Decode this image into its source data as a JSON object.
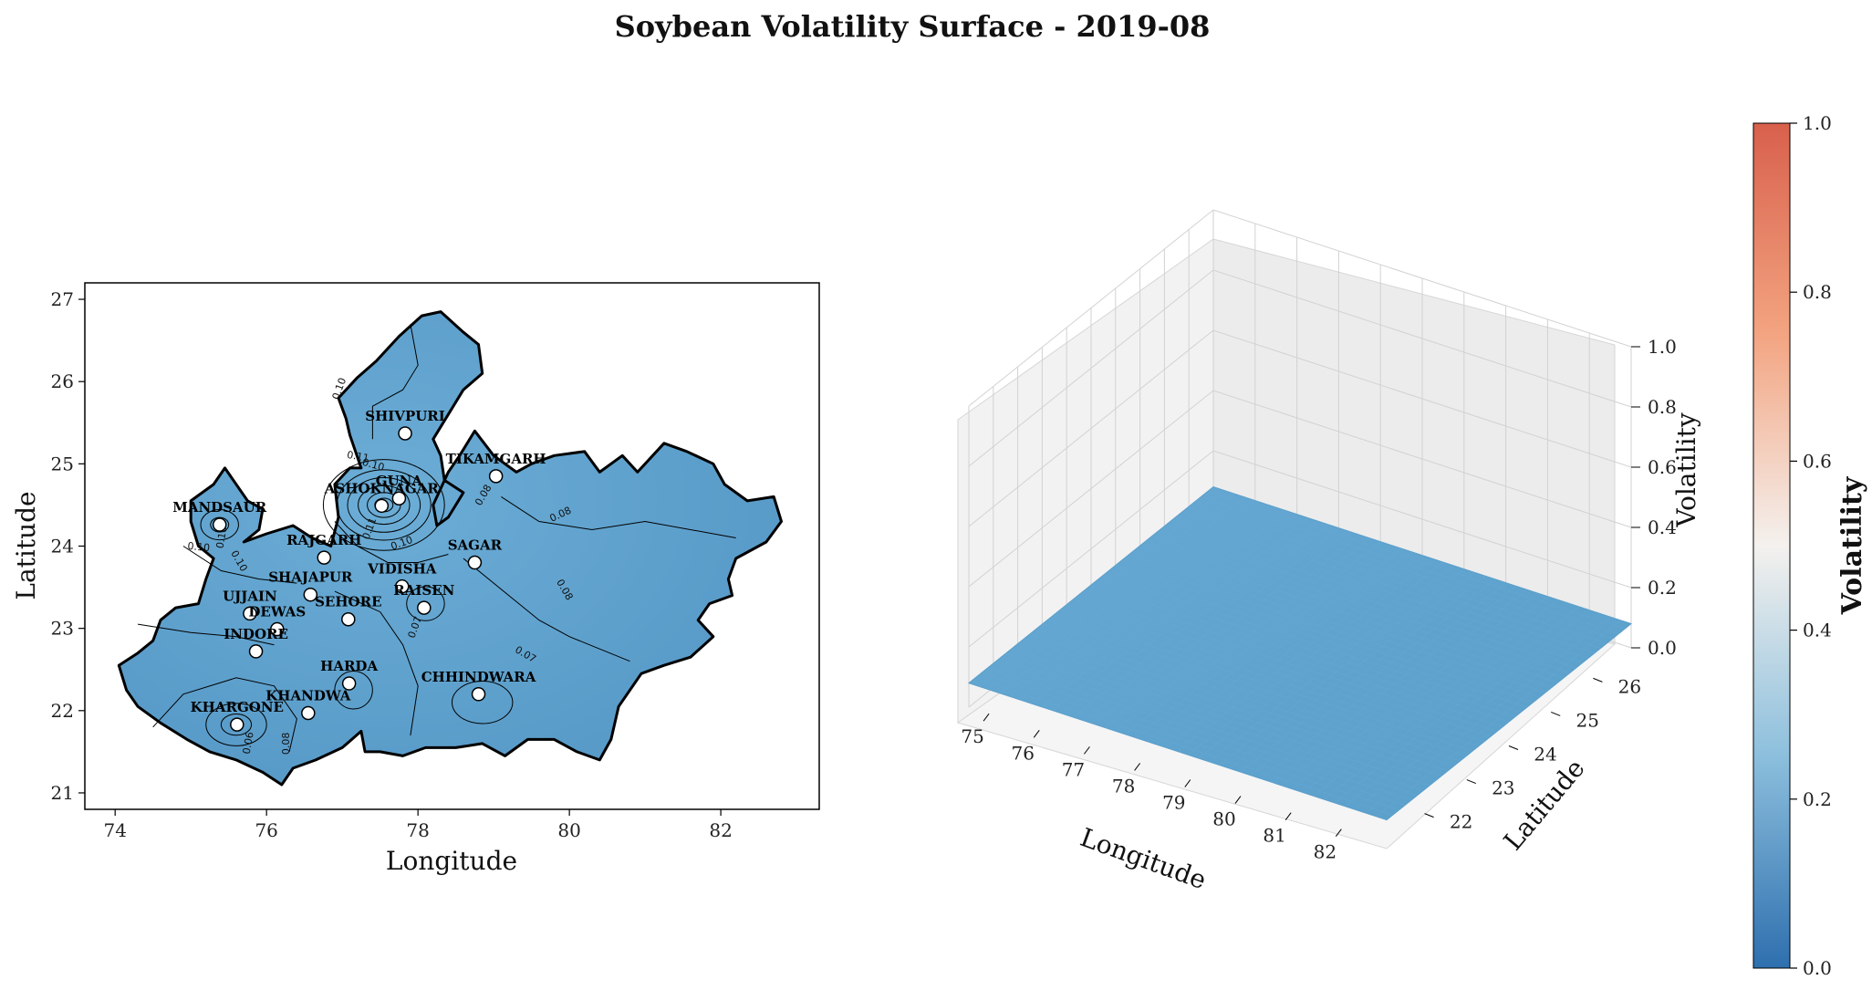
{
  "title": "Soybean Volatility Surface - 2019-08",
  "colors": {
    "fill": "#5B9FCB",
    "fill_light": "#6BADD6",
    "border": "#000000",
    "cmap_low": "#2E6FAE",
    "cmap_mid": "#F4F1EE",
    "cmap_high": "#D8604C"
  },
  "chart_data": [
    {
      "type": "heatmap",
      "subtype": "contour-map",
      "xlabel": "Longitude",
      "ylabel": "Latitude",
      "xticks": [
        "74",
        "76",
        "78",
        "80",
        "82"
      ],
      "yticks": [
        "21",
        "22",
        "23",
        "24",
        "25",
        "26",
        "27"
      ],
      "xlim": [
        73.6,
        83.3
      ],
      "ylim": [
        20.8,
        27.2
      ],
      "districts": [
        {
          "name": "SHIVPURI",
          "lon": 77.83,
          "lat": 25.37
        },
        {
          "name": "TIKAMGARH",
          "lon": 79.03,
          "lat": 24.85
        },
        {
          "name": "ASHOKNAGAR",
          "lon": 77.52,
          "lat": 24.49
        },
        {
          "name": "GUNA",
          "lon": 77.75,
          "lat": 24.58
        },
        {
          "name": "MANDSAUR",
          "lon": 75.38,
          "lat": 24.26
        },
        {
          "name": "RAJGARH",
          "lon": 76.76,
          "lat": 23.86
        },
        {
          "name": "SAGAR",
          "lon": 78.75,
          "lat": 23.8
        },
        {
          "name": "VIDISHA",
          "lon": 77.79,
          "lat": 23.51
        },
        {
          "name": "SHAJAPUR",
          "lon": 76.58,
          "lat": 23.41
        },
        {
          "name": "RAISEN",
          "lon": 78.08,
          "lat": 23.25
        },
        {
          "name": "UJJAIN",
          "lon": 75.78,
          "lat": 23.18
        },
        {
          "name": "SEHORE",
          "lon": 77.08,
          "lat": 23.11
        },
        {
          "name": "DEWAS",
          "lon": 76.14,
          "lat": 22.99
        },
        {
          "name": "INDORE",
          "lon": 75.86,
          "lat": 22.72
        },
        {
          "name": "HARDA",
          "lon": 77.09,
          "lat": 22.33
        },
        {
          "name": "CHHINDWARA",
          "lon": 78.8,
          "lat": 22.2
        },
        {
          "name": "KHANDWA",
          "lon": 76.55,
          "lat": 21.97
        },
        {
          "name": "KHARGONE",
          "lon": 75.61,
          "lat": 21.83
        }
      ],
      "contour_labels": [
        "0.10",
        "0.11",
        "0.10",
        "0.08",
        "0.08",
        "0.08",
        "0.07",
        "0.07",
        "0.08",
        "0.06",
        "0.10",
        "0.10",
        "0.11",
        "0.10",
        "0.10"
      ]
    },
    {
      "type": "surface3d",
      "xlabel": "Longitude",
      "ylabel": "Latitude",
      "zlabel": "Volatility",
      "xticks": [
        "75",
        "76",
        "77",
        "78",
        "79",
        "80",
        "81",
        "82"
      ],
      "yticks": [
        "22",
        "23",
        "24",
        "25",
        "26"
      ],
      "zticks": [
        "0.0",
        "0.2",
        "0.4",
        "0.6",
        "0.8",
        "1.0"
      ],
      "zlim": [
        0,
        1
      ],
      "surface_level": 0.08
    }
  ],
  "colorbar": {
    "label": "Volatility",
    "ticks": [
      "0.0",
      "0.2",
      "0.4",
      "0.6",
      "0.8",
      "1.0"
    ],
    "range": [
      0,
      1
    ]
  }
}
